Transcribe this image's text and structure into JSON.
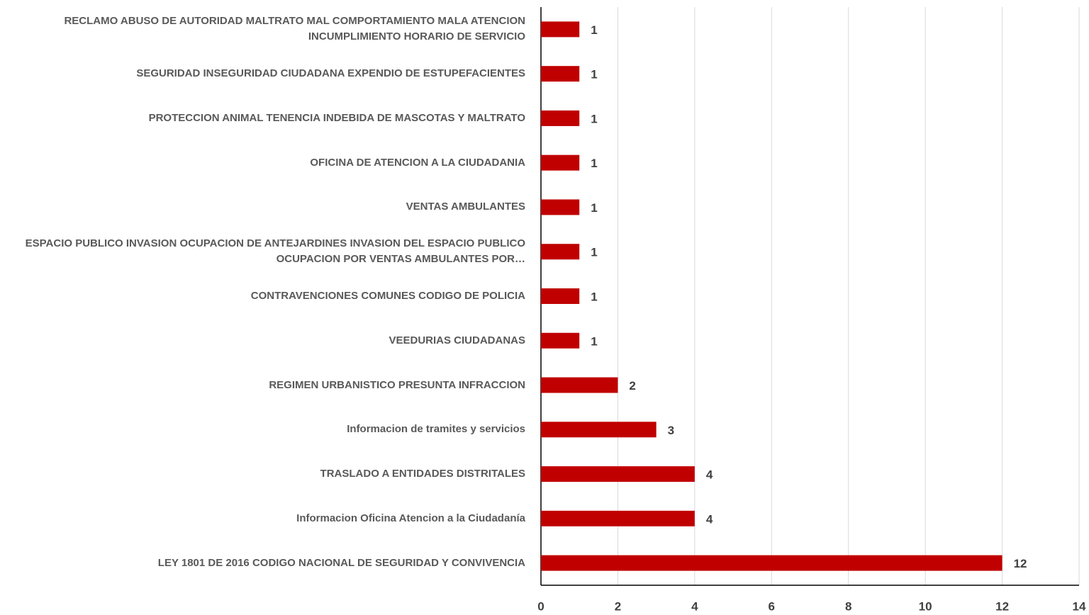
{
  "chart_data": {
    "type": "bar",
    "orientation": "horizontal",
    "categories": [
      "RECLAMO  ABUSO DE AUTORIDAD  MALTRATO  MAL COMPORTAMIENTO  MALA ATENCION  INCUMPLIMIENTO HORARIO DE SERVICIO",
      "SEGURIDAD  INSEGURIDAD CIUDADANA  EXPENDIO DE ESTUPEFACIENTES",
      "PROTECCION ANIMAL  TENENCIA INDEBIDA DE MASCOTAS Y MALTRATO",
      "OFICINA DE ATENCION A LA CIUDADANIA",
      "VENTAS AMBULANTES",
      "ESPACIO PUBLICO  INVASION  OCUPACION DE ANTEJARDINES  INVASION DEL ESPACIO PUBLICO  OCUPACION POR VENTAS AMBULANTES  POR…",
      "CONTRAVENCIONES COMUNES  CODIGO DE POLICIA",
      "VEEDURIAS CIUDADANAS",
      "REGIMEN URBANISTICO  PRESUNTA INFRACCION",
      "Informacion de tramites y servicios",
      "TRASLADO A ENTIDADES DISTRITALES",
      "Informacion Oficina Atencion a la Ciudadanía",
      "LEY 1801 DE 2016  CODIGO NACIONAL DE SEGURIDAD Y CONVIVENCIA"
    ],
    "values": [
      1,
      1,
      1,
      1,
      1,
      1,
      1,
      1,
      2,
      3,
      4,
      4,
      12
    ],
    "color": "#c00000",
    "xlim": [
      0,
      14
    ],
    "xticks": [
      0,
      2,
      4,
      6,
      8,
      10,
      12,
      14
    ],
    "grid": true
  }
}
